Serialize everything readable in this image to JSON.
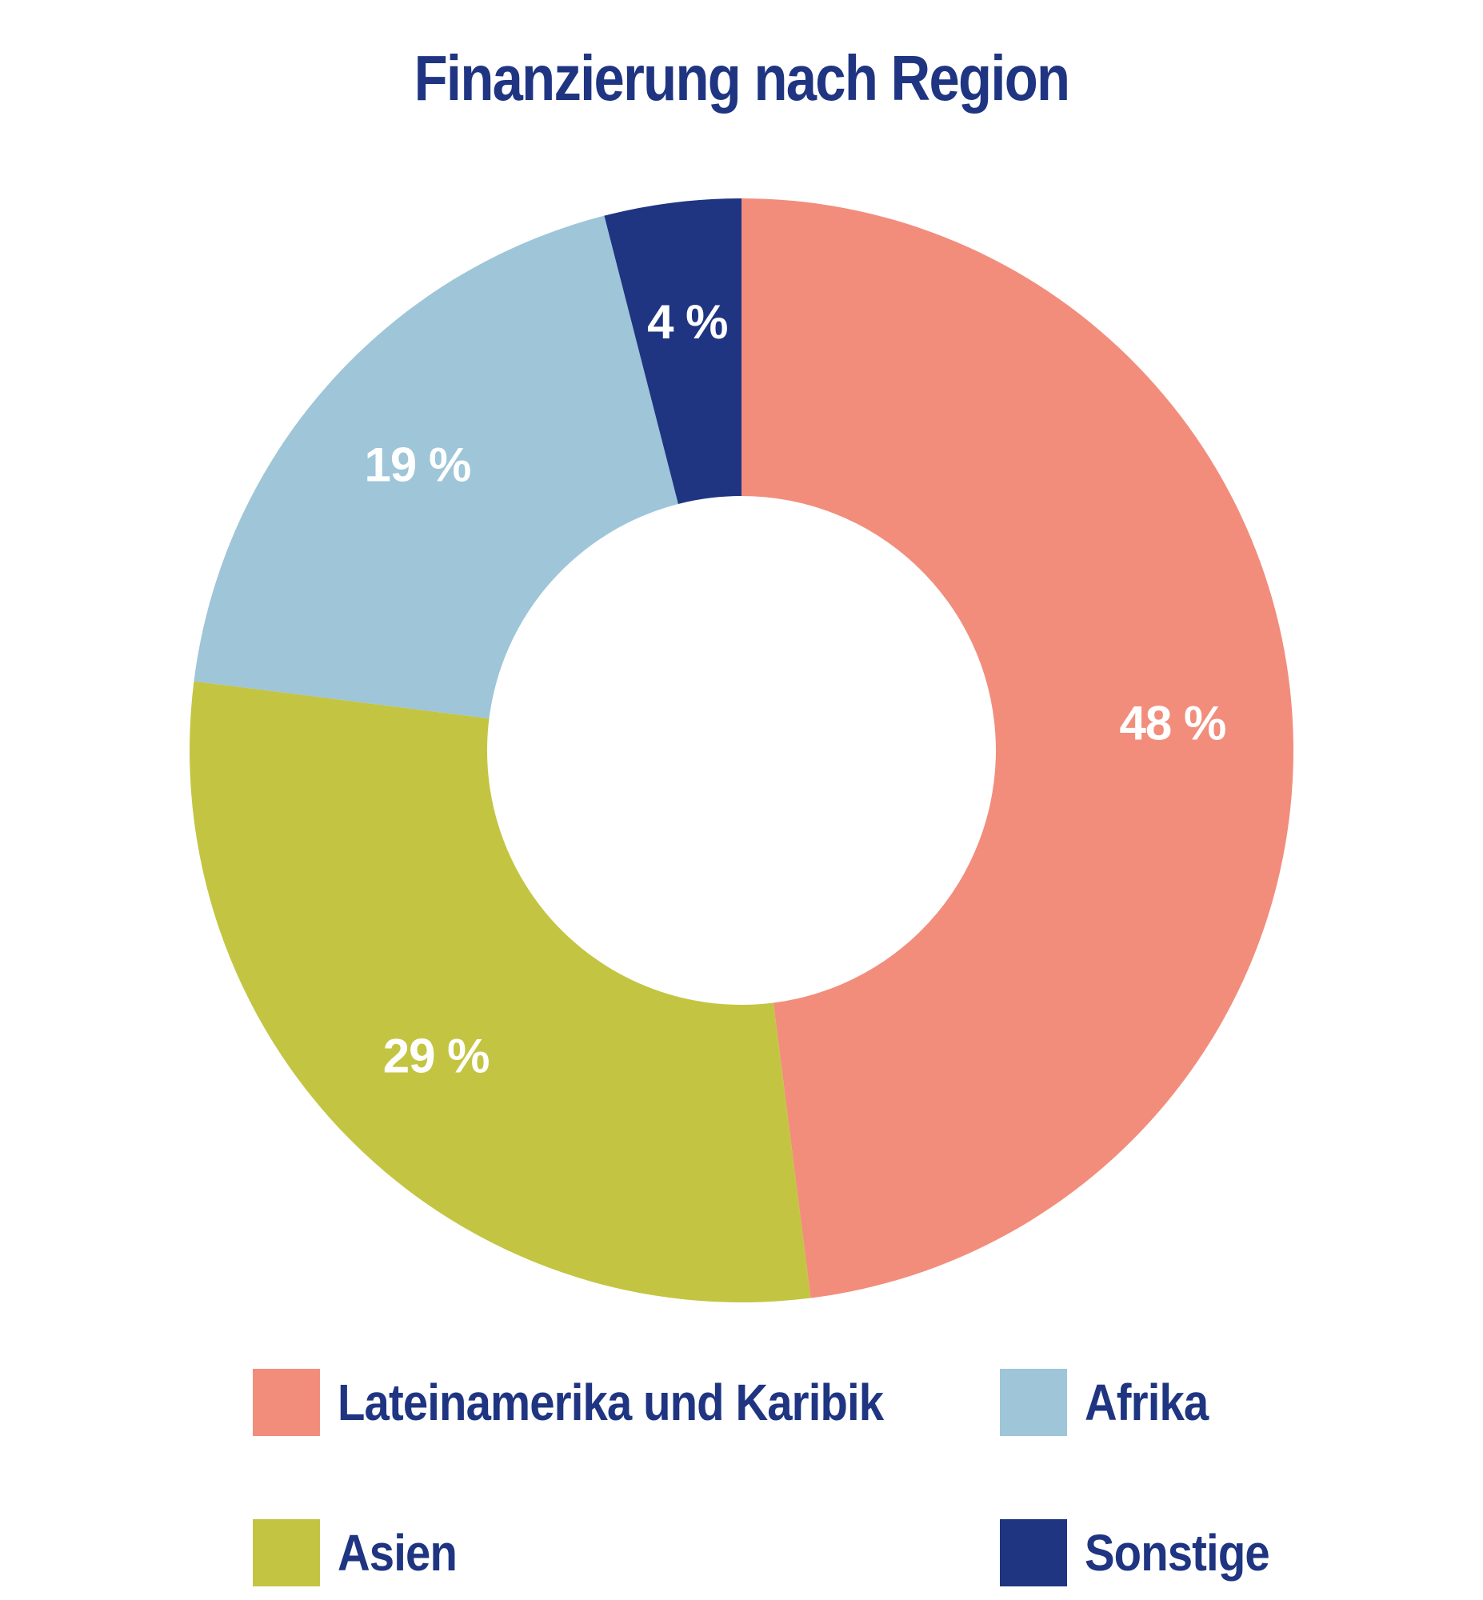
{
  "chart_data": {
    "type": "pie",
    "variant": "donut",
    "title": "Finanzierung nach Region",
    "slices": [
      {
        "label": "Lateinamerika und Karibik",
        "value": 48,
        "display": "48 %",
        "color": "#f28d7c"
      },
      {
        "label": "Asien",
        "value": 29,
        "display": "29 %",
        "color": "#c3c542"
      },
      {
        "label": "Afrika",
        "value": 19,
        "display": "19 %",
        "color": "#9ec5d8"
      },
      {
        "label": "Sonstige",
        "value": 4,
        "display": "4 %",
        "color": "#1f3582"
      }
    ],
    "legend": {
      "placement": "bottom",
      "items": [
        {
          "label": "Lateinamerika und Karibik",
          "color": "#f28d7c"
        },
        {
          "label": "Afrika",
          "color": "#9ec5d8"
        },
        {
          "label": "Asien",
          "color": "#c3c542"
        },
        {
          "label": "Sonstige",
          "color": "#1f3582"
        }
      ]
    }
  }
}
